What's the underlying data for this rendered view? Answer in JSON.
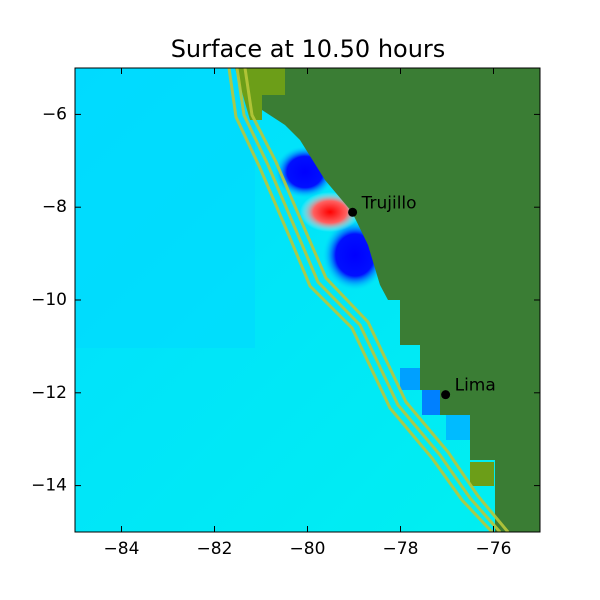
{
  "chart_data": {
    "type": "map",
    "title": "Surface at 10.50 hours",
    "xlim": [
      -85,
      -75
    ],
    "ylim": [
      -15,
      -5
    ],
    "xticks": [
      {
        "value": -84,
        "label": "−84"
      },
      {
        "value": -82,
        "label": "−82"
      },
      {
        "value": -80,
        "label": "−80"
      },
      {
        "value": -78,
        "label": "−78"
      },
      {
        "value": -76,
        "label": "−76"
      }
    ],
    "yticks": [
      {
        "value": -6,
        "label": "−6"
      },
      {
        "value": -8,
        "label": "−8"
      },
      {
        "value": -10,
        "label": "−10"
      },
      {
        "value": -12,
        "label": "−12"
      },
      {
        "value": -14,
        "label": "−14"
      }
    ],
    "points": [
      {
        "name": "Trujillo",
        "x": -79.03,
        "y": -8.11
      },
      {
        "name": "Lima",
        "x": -77.03,
        "y": -12.04
      }
    ],
    "point_color": "#000000"
  }
}
